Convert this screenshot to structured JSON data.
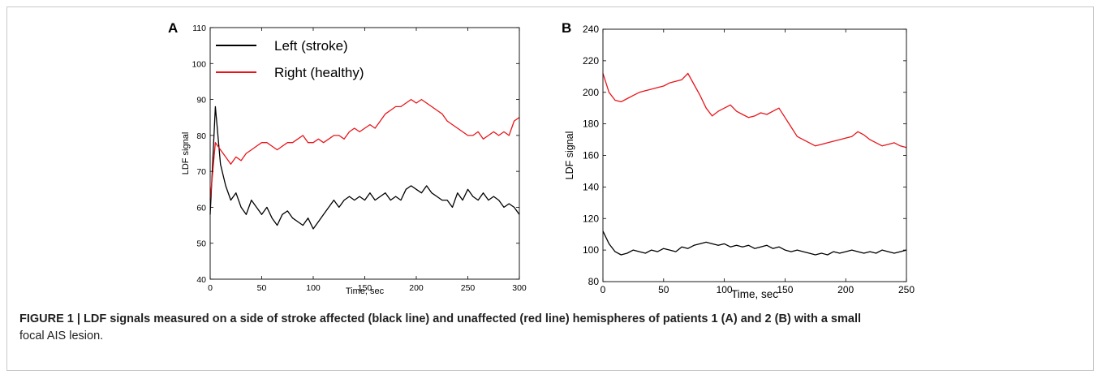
{
  "caption": {
    "bold": "FIGURE 1 | LDF signals measured on a side of stroke affected (black line) and unaffected (red line) hemispheres of patients 1 (A)  and 2 (B) with a small",
    "rest": "focal AIS lesion."
  },
  "chart_data": [
    {
      "type": "line",
      "panel_label": "A",
      "title": "",
      "xlabel": "Time, sec",
      "ylabel": "LDF signal",
      "xlim": [
        0,
        300
      ],
      "ylim": [
        40,
        110
      ],
      "xticks": [
        0,
        50,
        100,
        150,
        200,
        250,
        300
      ],
      "yticks": [
        40,
        50,
        60,
        70,
        80,
        90,
        100,
        110
      ],
      "grid": false,
      "legend_position": "top-left",
      "series": [
        {
          "name": "Left (stroke)",
          "color": "#000000",
          "x": [
            0,
            5,
            10,
            15,
            20,
            25,
            30,
            35,
            40,
            45,
            50,
            55,
            60,
            65,
            70,
            75,
            80,
            85,
            90,
            95,
            100,
            105,
            110,
            115,
            120,
            125,
            130,
            135,
            140,
            145,
            150,
            155,
            160,
            165,
            170,
            175,
            180,
            185,
            190,
            195,
            200,
            205,
            210,
            215,
            220,
            225,
            230,
            235,
            240,
            245,
            250,
            255,
            260,
            265,
            270,
            275,
            280,
            285,
            290,
            295,
            300
          ],
          "values": [
            58,
            88,
            72,
            66,
            62,
            64,
            60,
            58,
            62,
            60,
            58,
            60,
            57,
            55,
            58,
            59,
            57,
            56,
            55,
            57,
            54,
            56,
            58,
            60,
            62,
            60,
            62,
            63,
            62,
            63,
            62,
            64,
            62,
            63,
            64,
            62,
            63,
            62,
            65,
            66,
            65,
            64,
            66,
            64,
            63,
            62,
            62,
            60,
            64,
            62,
            65,
            63,
            62,
            64,
            62,
            63,
            62,
            60,
            61,
            60,
            58
          ]
        },
        {
          "name": "Right (healthy)",
          "color": "#e8141a",
          "x": [
            0,
            5,
            10,
            15,
            20,
            25,
            30,
            35,
            40,
            45,
            50,
            55,
            60,
            65,
            70,
            75,
            80,
            85,
            90,
            95,
            100,
            105,
            110,
            115,
            120,
            125,
            130,
            135,
            140,
            145,
            150,
            155,
            160,
            165,
            170,
            175,
            180,
            185,
            190,
            195,
            200,
            205,
            210,
            215,
            220,
            225,
            230,
            235,
            240,
            245,
            250,
            255,
            260,
            265,
            270,
            275,
            280,
            285,
            290,
            295,
            300
          ],
          "values": [
            62,
            78,
            76,
            74,
            72,
            74,
            73,
            75,
            76,
            77,
            78,
            78,
            77,
            76,
            77,
            78,
            78,
            79,
            80,
            78,
            78,
            79,
            78,
            79,
            80,
            80,
            79,
            81,
            82,
            81,
            82,
            83,
            82,
            84,
            86,
            87,
            88,
            88,
            89,
            90,
            89,
            90,
            89,
            88,
            87,
            86,
            84,
            83,
            82,
            81,
            80,
            80,
            81,
            79,
            80,
            81,
            80,
            81,
            80,
            84,
            85
          ]
        }
      ]
    },
    {
      "type": "line",
      "panel_label": "B",
      "title": "",
      "xlabel": "Time, sec",
      "ylabel": "LDF signal",
      "xlim": [
        0,
        250
      ],
      "ylim": [
        80,
        240
      ],
      "xticks": [
        0,
        50,
        100,
        150,
        200,
        250
      ],
      "yticks": [
        80,
        100,
        120,
        140,
        160,
        180,
        200,
        220,
        240
      ],
      "grid": false,
      "series": [
        {
          "color": "#000000",
          "x": [
            0,
            5,
            10,
            15,
            20,
            25,
            30,
            35,
            40,
            45,
            50,
            55,
            60,
            65,
            70,
            75,
            80,
            85,
            90,
            95,
            100,
            105,
            110,
            115,
            120,
            125,
            130,
            135,
            140,
            145,
            150,
            155,
            160,
            165,
            170,
            175,
            180,
            185,
            190,
            195,
            200,
            205,
            210,
            215,
            220,
            225,
            230,
            235,
            240,
            245,
            250
          ],
          "values": [
            112,
            104,
            99,
            97,
            98,
            100,
            99,
            98,
            100,
            99,
            101,
            100,
            99,
            102,
            101,
            103,
            104,
            105,
            104,
            103,
            104,
            102,
            103,
            102,
            103,
            101,
            102,
            103,
            101,
            102,
            100,
            99,
            100,
            99,
            98,
            97,
            98,
            97,
            99,
            98,
            99,
            100,
            99,
            98,
            99,
            98,
            100,
            99,
            98,
            99,
            100
          ]
        },
        {
          "color": "#e8141a",
          "x": [
            0,
            5,
            10,
            15,
            20,
            25,
            30,
            35,
            40,
            45,
            50,
            55,
            60,
            65,
            70,
            75,
            80,
            85,
            90,
            95,
            100,
            105,
            110,
            115,
            120,
            125,
            130,
            135,
            140,
            145,
            150,
            155,
            160,
            165,
            170,
            175,
            180,
            185,
            190,
            195,
            200,
            205,
            210,
            215,
            220,
            225,
            230,
            235,
            240,
            245,
            250
          ],
          "values": [
            212,
            200,
            195,
            194,
            196,
            198,
            200,
            201,
            202,
            203,
            204,
            206,
            207,
            208,
            212,
            205,
            198,
            190,
            185,
            188,
            190,
            192,
            188,
            186,
            184,
            185,
            187,
            186,
            188,
            190,
            184,
            178,
            172,
            170,
            168,
            166,
            167,
            168,
            169,
            170,
            171,
            172,
            175,
            173,
            170,
            168,
            166,
            167,
            168,
            166,
            165
          ]
        }
      ]
    }
  ]
}
